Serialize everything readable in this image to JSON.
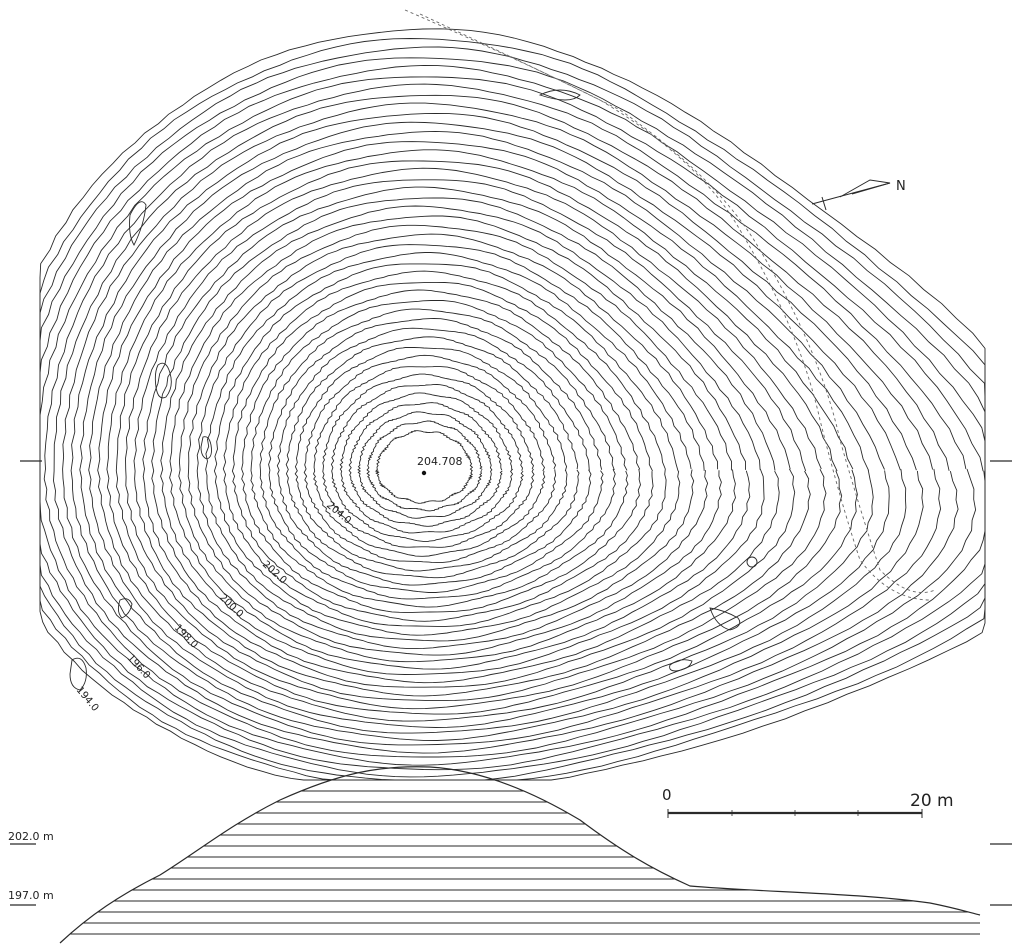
{
  "map": {
    "summit_elevation": "204.708",
    "contour_labels": [
      "204.0",
      "202.0",
      "200.0",
      "198.0",
      "196.0",
      "194.0"
    ],
    "north_label": "N",
    "scale_bar": {
      "start_label": "0",
      "end_label": "20 m"
    },
    "section_levels": [
      "202.0 m",
      "197.0 m"
    ],
    "colors": {
      "line": "#2a2a2a",
      "dashed": "#666666",
      "background": "#ffffff"
    }
  }
}
